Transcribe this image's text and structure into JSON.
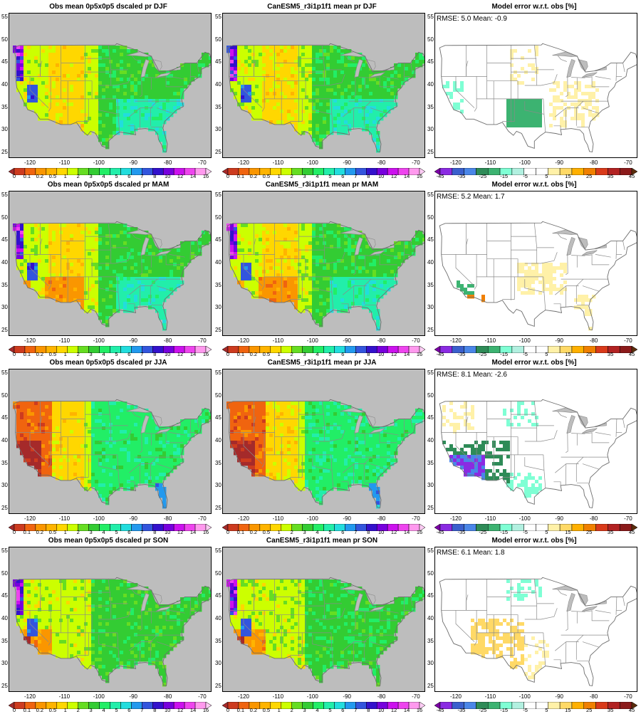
{
  "rows": [
    {
      "season": "DJF",
      "panels": [
        {
          "kind": "obs",
          "title": "Obs mean 0p5x0p5 dscaled pr DJF"
        },
        {
          "kind": "model",
          "title": "CanESM5_r3i1p1f1 mean pr DJF"
        },
        {
          "kind": "error",
          "title": "Model error w.r.t. obs [%]",
          "stats": "RMSE: 5.0  Mean: -0.9"
        }
      ]
    },
    {
      "season": "MAM",
      "panels": [
        {
          "kind": "obs",
          "title": "Obs mean 0p5x0p5 dscaled pr MAM"
        },
        {
          "kind": "model",
          "title": "CanESM5_r3i1p1f1 mean pr MAM"
        },
        {
          "kind": "error",
          "title": "Model error w.r.t. obs [%]",
          "stats": "RMSE: 5.2  Mean: 1.7"
        }
      ]
    },
    {
      "season": "JJA",
      "panels": [
        {
          "kind": "obs",
          "title": "Obs mean 0p5x0p5 dscaled pr JJA"
        },
        {
          "kind": "model",
          "title": "CanESM5_r3i1p1f1 mean pr JJA"
        },
        {
          "kind": "error",
          "title": "Model error w.r.t. obs [%]",
          "stats": "RMSE: 8.1  Mean: -2.6"
        }
      ]
    },
    {
      "season": "SON",
      "panels": [
        {
          "kind": "obs",
          "title": "Obs mean 0p5x0p5 dscaled pr SON"
        },
        {
          "kind": "model",
          "title": "CanESM5_r3i1p1f1 mean pr SON"
        },
        {
          "kind": "error",
          "title": "Model error w.r.t. obs [%]",
          "stats": "RMSE: 6.1  Mean: 1.8"
        }
      ]
    }
  ],
  "axes": {
    "lon_ticks": [
      "-120",
      "-110",
      "-100",
      "-90",
      "-80",
      "-70"
    ],
    "lon_values": [
      -120,
      -110,
      -100,
      -90,
      -80,
      -70
    ],
    "lat_ticks": [
      "55",
      "50",
      "45",
      "40",
      "35",
      "30",
      "25"
    ],
    "lat_values": [
      55,
      50,
      45,
      40,
      35,
      30,
      25
    ],
    "lon_range": [
      -126,
      -67.5
    ],
    "lat_range": [
      24,
      56
    ]
  },
  "colorbars": {
    "precip": {
      "labels": [
        "0",
        "0.1",
        "0.2",
        "0.5",
        "1",
        "2",
        "3",
        "4",
        "5",
        "6",
        "7",
        "8",
        "10",
        "12",
        "14",
        "16"
      ],
      "colors": [
        "#a52a2a",
        "#cd3b1f",
        "#f0640f",
        "#fa9600",
        "#ffb400",
        "#ffd700",
        "#ccff00",
        "#66dd22",
        "#33cc33",
        "#22ee66",
        "#22eeaa",
        "#22dddd",
        "#2299ee",
        "#3355dd",
        "#3311cc",
        "#7700dd",
        "#cc11ee",
        "#ee44ee",
        "#ff99ee",
        "#ffccf5"
      ]
    },
    "error": {
      "labels": [
        "-45",
        "-35",
        "-25",
        "-15",
        "-5",
        "5",
        "15",
        "25",
        "35",
        "45"
      ],
      "colors": [
        "#7b00a6",
        "#8a2be2",
        "#3a5fcd",
        "#4a86e8",
        "#2e8b57",
        "#3cb371",
        "#7fffd4",
        "#b2f0e0",
        "#ffffff",
        "#ffffff",
        "#fff1a8",
        "#ffd966",
        "#ffb000",
        "#f08000",
        "#d93a1a",
        "#b22222",
        "#8b1a1a",
        "#5a2d0c"
      ]
    }
  },
  "colors": {
    "land_missing": "#bdbdbd",
    "ocean_bg": "#ffffff",
    "border_line": "#8a8a8a"
  }
}
